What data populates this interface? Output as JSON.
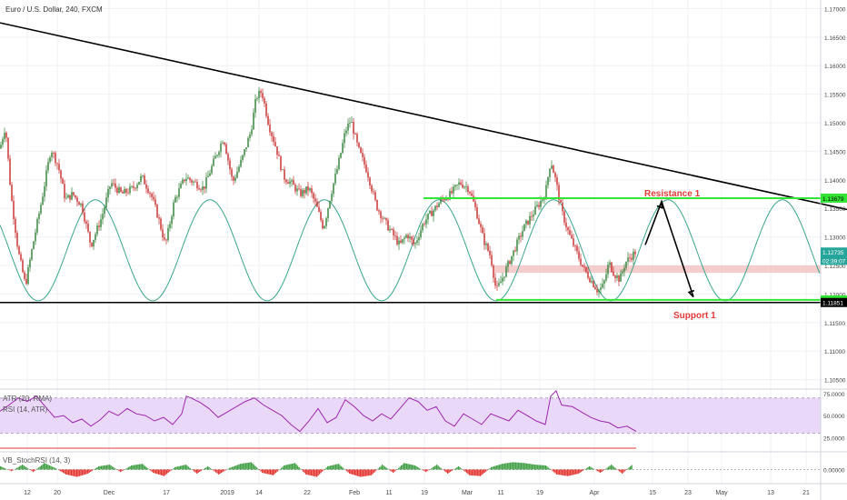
{
  "symbol_header": "Euro / U.S. Dollar, 240, FXCM",
  "colors": {
    "bull": "#2e7d32",
    "bear": "#c62828",
    "grid": "#eef0f3",
    "trendline": "#000000",
    "level_green": "#33e633",
    "cycle": "#3aa58a",
    "zone": "#f2bcbc",
    "osc_band": "#ead8f8",
    "osc_line": "#9c27b0",
    "hist_pos": "#43a047",
    "hist_neg": "#e53935"
  },
  "chart_data": {
    "type": "candlestick",
    "price_axis": {
      "ticks": [
        "1.17000",
        "1.16500",
        "1.16000",
        "1.15500",
        "1.15000",
        "1.14500",
        "1.14000",
        "1.13500",
        "1.13000",
        "1.12500",
        "1.12000",
        "1.11500",
        "1.11000",
        "1.10500"
      ],
      "range": [
        1.1035,
        1.1715
      ]
    },
    "time_axis": {
      "labels": [
        "12",
        "20",
        "Dec",
        "17",
        "2019",
        "14",
        "22",
        "Feb",
        "11",
        "19",
        "Mar",
        "11",
        "19",
        "Apr",
        "15",
        "23",
        "May",
        "13",
        "21"
      ]
    },
    "price_path": [
      [
        0,
        1.1455
      ],
      [
        6,
        1.1495
      ],
      [
        12,
        1.1375
      ],
      [
        20,
        1.1275
      ],
      [
        28,
        1.1215
      ],
      [
        36,
        1.1285
      ],
      [
        46,
        1.1365
      ],
      [
        56,
        1.1455
      ],
      [
        64,
        1.1425
      ],
      [
        72,
        1.1365
      ],
      [
        80,
        1.1375
      ],
      [
        90,
        1.1355
      ],
      [
        100,
        1.1285
      ],
      [
        112,
        1.1335
      ],
      [
        122,
        1.1395
      ],
      [
        134,
        1.1375
      ],
      [
        146,
        1.1385
      ],
      [
        156,
        1.1405
      ],
      [
        166,
        1.1375
      ],
      [
        174,
        1.1335
      ],
      [
        182,
        1.1285
      ],
      [
        192,
        1.1365
      ],
      [
        204,
        1.1405
      ],
      [
        214,
        1.1395
      ],
      [
        224,
        1.1385
      ],
      [
        236,
        1.1435
      ],
      [
        246,
        1.1475
      ],
      [
        256,
        1.1395
      ],
      [
        266,
        1.1435
      ],
      [
        276,
        1.1485
      ],
      [
        282,
        1.1545
      ],
      [
        288,
        1.1555
      ],
      [
        296,
        1.1495
      ],
      [
        304,
        1.1455
      ],
      [
        312,
        1.1405
      ],
      [
        320,
        1.1395
      ],
      [
        330,
        1.1375
      ],
      [
        340,
        1.1385
      ],
      [
        348,
        1.1355
      ],
      [
        356,
        1.1315
      ],
      [
        364,
        1.1375
      ],
      [
        372,
        1.1425
      ],
      [
        380,
        1.1485
      ],
      [
        386,
        1.1505
      ],
      [
        394,
        1.1455
      ],
      [
        404,
        1.1415
      ],
      [
        414,
        1.1355
      ],
      [
        424,
        1.1325
      ],
      [
        432,
        1.1305
      ],
      [
        440,
        1.1285
      ],
      [
        448,
        1.1305
      ],
      [
        456,
        1.1285
      ],
      [
        466,
        1.1325
      ],
      [
        476,
        1.1345
      ],
      [
        486,
        1.1365
      ],
      [
        496,
        1.1375
      ],
      [
        506,
        1.1395
      ],
      [
        516,
        1.1385
      ],
      [
        524,
        1.1345
      ],
      [
        532,
        1.1295
      ],
      [
        540,
        1.1265
      ],
      [
        546,
        1.1205
      ],
      [
        552,
        1.1225
      ],
      [
        560,
        1.1255
      ],
      [
        568,
        1.1285
      ],
      [
        576,
        1.1315
      ],
      [
        584,
        1.1335
      ],
      [
        592,
        1.1355
      ],
      [
        600,
        1.1375
      ],
      [
        606,
        1.1435
      ],
      [
        612,
        1.1395
      ],
      [
        618,
        1.1345
      ],
      [
        626,
        1.1305
      ],
      [
        634,
        1.1275
      ],
      [
        642,
        1.1245
      ],
      [
        650,
        1.1225
      ],
      [
        658,
        1.1205
      ],
      [
        664,
        1.1215
      ],
      [
        670,
        1.1255
      ],
      [
        676,
        1.1235
      ],
      [
        682,
        1.1225
      ],
      [
        688,
        1.1255
      ],
      [
        694,
        1.1265
      ],
      [
        700,
        1.1275
      ]
    ],
    "price_labels": [
      {
        "text": "1.13679",
        "value": 1.13679,
        "color": "#33e633",
        "text_color": "#000000"
      },
      {
        "text": "1.12735",
        "value": 1.12735,
        "color": "#26a69a",
        "text_color": "#ffffff"
      },
      {
        "text": "02:39:07",
        "value": 1.1259,
        "color": "#26a69a",
        "text_color": "#ffffff"
      },
      {
        "text": "1.11897",
        "value": 1.11897,
        "color": "#33e633",
        "text_color": "#000000"
      },
      {
        "text": "1.11851",
        "value": 1.11851,
        "color": "#000000",
        "text_color": "#ffffff"
      }
    ],
    "trendline": {
      "from": [
        0,
        1.1675
      ],
      "to": [
        932,
        1.1348
      ]
    },
    "support_line": {
      "value": 1.11851
    },
    "resistance_level": {
      "value": 1.13679,
      "label": "Resistance 1"
    },
    "support_level": {
      "value": 1.11897,
      "label": "Support 1"
    },
    "zone": {
      "from_value": 1.125,
      "to_value": 1.1237
    },
    "cycle": {
      "low": 1.1188,
      "high": 1.1365,
      "period_bars": 126,
      "low_offset": 42
    },
    "projection": [
      [
        710,
        1.1286
      ],
      [
        728,
        1.1362
      ],
      [
        763,
        1.1195
      ]
    ],
    "osc": {
      "title_1": "ATR (20, RMA)",
      "title_2": "RSI (14, ATR)",
      "ticks": [
        "75.0000",
        "50.0000",
        "25.0000"
      ],
      "band": [
        30,
        70
      ],
      "range": [
        10,
        80
      ],
      "series": [
        [
          0,
          55
        ],
        [
          10,
          62
        ],
        [
          20,
          70
        ],
        [
          30,
          66
        ],
        [
          40,
          72
        ],
        [
          50,
          60
        ],
        [
          60,
          48
        ],
        [
          70,
          50
        ],
        [
          80,
          42
        ],
        [
          90,
          46
        ],
        [
          100,
          38
        ],
        [
          110,
          45
        ],
        [
          120,
          55
        ],
        [
          130,
          50
        ],
        [
          140,
          58
        ],
        [
          150,
          52
        ],
        [
          160,
          50
        ],
        [
          170,
          44
        ],
        [
          180,
          48
        ],
        [
          190,
          40
        ],
        [
          200,
          52
        ],
        [
          205,
          72
        ],
        [
          210,
          70
        ],
        [
          220,
          65
        ],
        [
          230,
          58
        ],
        [
          240,
          48
        ],
        [
          250,
          54
        ],
        [
          260,
          60
        ],
        [
          270,
          66
        ],
        [
          280,
          70
        ],
        [
          290,
          62
        ],
        [
          300,
          56
        ],
        [
          310,
          50
        ],
        [
          320,
          40
        ],
        [
          330,
          32
        ],
        [
          340,
          44
        ],
        [
          350,
          58
        ],
        [
          360,
          42
        ],
        [
          370,
          48
        ],
        [
          380,
          68
        ],
        [
          390,
          60
        ],
        [
          400,
          50
        ],
        [
          410,
          44
        ],
        [
          420,
          52
        ],
        [
          430,
          46
        ],
        [
          440,
          58
        ],
        [
          450,
          70
        ],
        [
          460,
          66
        ],
        [
          470,
          56
        ],
        [
          480,
          60
        ],
        [
          490,
          44
        ],
        [
          500,
          38
        ],
        [
          510,
          52
        ],
        [
          520,
          46
        ],
        [
          530,
          40
        ],
        [
          540,
          52
        ],
        [
          550,
          48
        ],
        [
          560,
          44
        ],
        [
          570,
          56
        ],
        [
          580,
          50
        ],
        [
          590,
          44
        ],
        [
          600,
          40
        ],
        [
          606,
          72
        ],
        [
          612,
          78
        ],
        [
          618,
          62
        ],
        [
          630,
          60
        ],
        [
          640,
          54
        ],
        [
          650,
          48
        ],
        [
          660,
          44
        ],
        [
          670,
          42
        ],
        [
          680,
          36
        ],
        [
          690,
          38
        ],
        [
          700,
          32
        ]
      ]
    },
    "stoch": {
      "title": "VB_StochRSI (14, 3)",
      "ticks": [
        "0.00000"
      ],
      "bars": [
        [
          0,
          0.4
        ],
        [
          12,
          -0.2
        ],
        [
          24,
          0.6
        ],
        [
          36,
          -0.3
        ],
        [
          48,
          0.8
        ],
        [
          60,
          0.2
        ],
        [
          72,
          -0.6
        ],
        [
          84,
          -0.9
        ],
        [
          96,
          -0.5
        ],
        [
          108,
          0.4
        ],
        [
          120,
          0.6
        ],
        [
          132,
          -0.3
        ],
        [
          144,
          0.5
        ],
        [
          156,
          0.7
        ],
        [
          168,
          -0.4
        ],
        [
          180,
          -0.8
        ],
        [
          192,
          0.3
        ],
        [
          204,
          0.6
        ],
        [
          216,
          -0.5
        ],
        [
          228,
          0.4
        ],
        [
          240,
          -0.6
        ],
        [
          252,
          0.2
        ],
        [
          264,
          0.7
        ],
        [
          276,
          0.9
        ],
        [
          288,
          -0.4
        ],
        [
          300,
          -0.7
        ],
        [
          312,
          0.5
        ],
        [
          324,
          0.8
        ],
        [
          336,
          -0.6
        ],
        [
          348,
          -0.9
        ],
        [
          360,
          0.4
        ],
        [
          372,
          0.7
        ],
        [
          384,
          -0.5
        ],
        [
          396,
          -0.9
        ],
        [
          408,
          -0.7
        ],
        [
          420,
          0.6
        ],
        [
          432,
          -0.4
        ],
        [
          444,
          0.8
        ],
        [
          456,
          0.5
        ],
        [
          468,
          -0.3
        ],
        [
          480,
          0.6
        ],
        [
          492,
          -0.5
        ],
        [
          504,
          0.4
        ],
        [
          516,
          -0.7
        ],
        [
          528,
          -0.8
        ],
        [
          540,
          0.3
        ],
        [
          552,
          0.7
        ],
        [
          564,
          0.9
        ],
        [
          576,
          0.8
        ],
        [
          588,
          0.6
        ],
        [
          600,
          0.5
        ],
        [
          612,
          -0.6
        ],
        [
          624,
          -0.8
        ],
        [
          636,
          -0.5
        ],
        [
          648,
          0.4
        ],
        [
          660,
          -0.4
        ],
        [
          672,
          0.6
        ],
        [
          684,
          -0.5
        ],
        [
          696,
          0.7
        ]
      ]
    }
  }
}
